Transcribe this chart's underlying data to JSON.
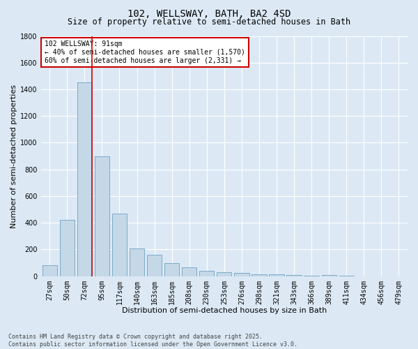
{
  "title": "102, WELLSWAY, BATH, BA2 4SD",
  "subtitle": "Size of property relative to semi-detached houses in Bath",
  "xlabel": "Distribution of semi-detached houses by size in Bath",
  "ylabel": "Number of semi-detached properties",
  "categories": [
    "27sqm",
    "50sqm",
    "72sqm",
    "95sqm",
    "117sqm",
    "140sqm",
    "163sqm",
    "185sqm",
    "208sqm",
    "230sqm",
    "253sqm",
    "276sqm",
    "298sqm",
    "321sqm",
    "343sqm",
    "366sqm",
    "389sqm",
    "411sqm",
    "434sqm",
    "456sqm",
    "479sqm"
  ],
  "values": [
    80,
    420,
    1450,
    900,
    470,
    210,
    160,
    100,
    65,
    40,
    30,
    25,
    15,
    12,
    10,
    5,
    8,
    3,
    0,
    0,
    0
  ],
  "bar_color": "#c5d8e8",
  "bar_edge_color": "#7aaac8",
  "background_color": "#dce9f5",
  "grid_color": "#ffffff",
  "vline_color": "#cc0000",
  "annotation_title": "102 WELLSWAY: 91sqm",
  "annotation_line1": "← 40% of semi-detached houses are smaller (1,570)",
  "annotation_line2": "60% of semi-detached houses are larger (2,331) →",
  "annotation_box_color": "#cc0000",
  "footer_line1": "Contains HM Land Registry data © Crown copyright and database right 2025.",
  "footer_line2": "Contains public sector information licensed under the Open Government Licence v3.0.",
  "ylim": [
    0,
    1800
  ],
  "yticks": [
    0,
    200,
    400,
    600,
    800,
    1000,
    1200,
    1400,
    1600,
    1800
  ],
  "title_fontsize": 10,
  "subtitle_fontsize": 8.5,
  "axis_label_fontsize": 8,
  "tick_fontsize": 7,
  "annotation_fontsize": 7,
  "footer_fontsize": 6
}
